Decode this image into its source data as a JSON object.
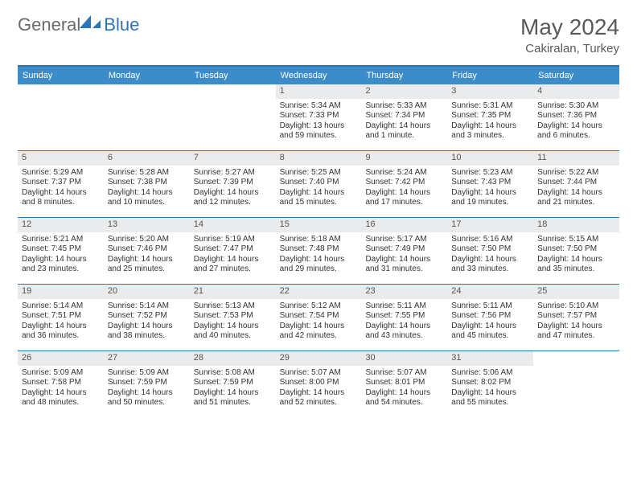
{
  "logo": {
    "text1": "General",
    "text2": "Blue"
  },
  "title": "May 2024",
  "location": "Cakiralan, Turkey",
  "colors": {
    "header_bar": "#3b8cc9",
    "border": "#2d74b5",
    "daynum_bg": "#e9ebec",
    "text": "#333333",
    "title_text": "#5a5a5a"
  },
  "dayHeaders": [
    "Sunday",
    "Monday",
    "Tuesday",
    "Wednesday",
    "Thursday",
    "Friday",
    "Saturday"
  ],
  "weeks": [
    [
      {
        "n": "",
        "sr": "",
        "ss": "",
        "dl": ""
      },
      {
        "n": "",
        "sr": "",
        "ss": "",
        "dl": ""
      },
      {
        "n": "",
        "sr": "",
        "ss": "",
        "dl": ""
      },
      {
        "n": "1",
        "sr": "Sunrise: 5:34 AM",
        "ss": "Sunset: 7:33 PM",
        "dl": "Daylight: 13 hours and 59 minutes."
      },
      {
        "n": "2",
        "sr": "Sunrise: 5:33 AM",
        "ss": "Sunset: 7:34 PM",
        "dl": "Daylight: 14 hours and 1 minute."
      },
      {
        "n": "3",
        "sr": "Sunrise: 5:31 AM",
        "ss": "Sunset: 7:35 PM",
        "dl": "Daylight: 14 hours and 3 minutes."
      },
      {
        "n": "4",
        "sr": "Sunrise: 5:30 AM",
        "ss": "Sunset: 7:36 PM",
        "dl": "Daylight: 14 hours and 6 minutes."
      }
    ],
    [
      {
        "n": "5",
        "sr": "Sunrise: 5:29 AM",
        "ss": "Sunset: 7:37 PM",
        "dl": "Daylight: 14 hours and 8 minutes."
      },
      {
        "n": "6",
        "sr": "Sunrise: 5:28 AM",
        "ss": "Sunset: 7:38 PM",
        "dl": "Daylight: 14 hours and 10 minutes."
      },
      {
        "n": "7",
        "sr": "Sunrise: 5:27 AM",
        "ss": "Sunset: 7:39 PM",
        "dl": "Daylight: 14 hours and 12 minutes."
      },
      {
        "n": "8",
        "sr": "Sunrise: 5:25 AM",
        "ss": "Sunset: 7:40 PM",
        "dl": "Daylight: 14 hours and 15 minutes."
      },
      {
        "n": "9",
        "sr": "Sunrise: 5:24 AM",
        "ss": "Sunset: 7:42 PM",
        "dl": "Daylight: 14 hours and 17 minutes."
      },
      {
        "n": "10",
        "sr": "Sunrise: 5:23 AM",
        "ss": "Sunset: 7:43 PM",
        "dl": "Daylight: 14 hours and 19 minutes."
      },
      {
        "n": "11",
        "sr": "Sunrise: 5:22 AM",
        "ss": "Sunset: 7:44 PM",
        "dl": "Daylight: 14 hours and 21 minutes."
      }
    ],
    [
      {
        "n": "12",
        "sr": "Sunrise: 5:21 AM",
        "ss": "Sunset: 7:45 PM",
        "dl": "Daylight: 14 hours and 23 minutes."
      },
      {
        "n": "13",
        "sr": "Sunrise: 5:20 AM",
        "ss": "Sunset: 7:46 PM",
        "dl": "Daylight: 14 hours and 25 minutes."
      },
      {
        "n": "14",
        "sr": "Sunrise: 5:19 AM",
        "ss": "Sunset: 7:47 PM",
        "dl": "Daylight: 14 hours and 27 minutes."
      },
      {
        "n": "15",
        "sr": "Sunrise: 5:18 AM",
        "ss": "Sunset: 7:48 PM",
        "dl": "Daylight: 14 hours and 29 minutes."
      },
      {
        "n": "16",
        "sr": "Sunrise: 5:17 AM",
        "ss": "Sunset: 7:49 PM",
        "dl": "Daylight: 14 hours and 31 minutes."
      },
      {
        "n": "17",
        "sr": "Sunrise: 5:16 AM",
        "ss": "Sunset: 7:50 PM",
        "dl": "Daylight: 14 hours and 33 minutes."
      },
      {
        "n": "18",
        "sr": "Sunrise: 5:15 AM",
        "ss": "Sunset: 7:50 PM",
        "dl": "Daylight: 14 hours and 35 minutes."
      }
    ],
    [
      {
        "n": "19",
        "sr": "Sunrise: 5:14 AM",
        "ss": "Sunset: 7:51 PM",
        "dl": "Daylight: 14 hours and 36 minutes."
      },
      {
        "n": "20",
        "sr": "Sunrise: 5:14 AM",
        "ss": "Sunset: 7:52 PM",
        "dl": "Daylight: 14 hours and 38 minutes."
      },
      {
        "n": "21",
        "sr": "Sunrise: 5:13 AM",
        "ss": "Sunset: 7:53 PM",
        "dl": "Daylight: 14 hours and 40 minutes."
      },
      {
        "n": "22",
        "sr": "Sunrise: 5:12 AM",
        "ss": "Sunset: 7:54 PM",
        "dl": "Daylight: 14 hours and 42 minutes."
      },
      {
        "n": "23",
        "sr": "Sunrise: 5:11 AM",
        "ss": "Sunset: 7:55 PM",
        "dl": "Daylight: 14 hours and 43 minutes."
      },
      {
        "n": "24",
        "sr": "Sunrise: 5:11 AM",
        "ss": "Sunset: 7:56 PM",
        "dl": "Daylight: 14 hours and 45 minutes."
      },
      {
        "n": "25",
        "sr": "Sunrise: 5:10 AM",
        "ss": "Sunset: 7:57 PM",
        "dl": "Daylight: 14 hours and 47 minutes."
      }
    ],
    [
      {
        "n": "26",
        "sr": "Sunrise: 5:09 AM",
        "ss": "Sunset: 7:58 PM",
        "dl": "Daylight: 14 hours and 48 minutes."
      },
      {
        "n": "27",
        "sr": "Sunrise: 5:09 AM",
        "ss": "Sunset: 7:59 PM",
        "dl": "Daylight: 14 hours and 50 minutes."
      },
      {
        "n": "28",
        "sr": "Sunrise: 5:08 AM",
        "ss": "Sunset: 7:59 PM",
        "dl": "Daylight: 14 hours and 51 minutes."
      },
      {
        "n": "29",
        "sr": "Sunrise: 5:07 AM",
        "ss": "Sunset: 8:00 PM",
        "dl": "Daylight: 14 hours and 52 minutes."
      },
      {
        "n": "30",
        "sr": "Sunrise: 5:07 AM",
        "ss": "Sunset: 8:01 PM",
        "dl": "Daylight: 14 hours and 54 minutes."
      },
      {
        "n": "31",
        "sr": "Sunrise: 5:06 AM",
        "ss": "Sunset: 8:02 PM",
        "dl": "Daylight: 14 hours and 55 minutes."
      },
      {
        "n": "",
        "sr": "",
        "ss": "",
        "dl": ""
      }
    ]
  ]
}
